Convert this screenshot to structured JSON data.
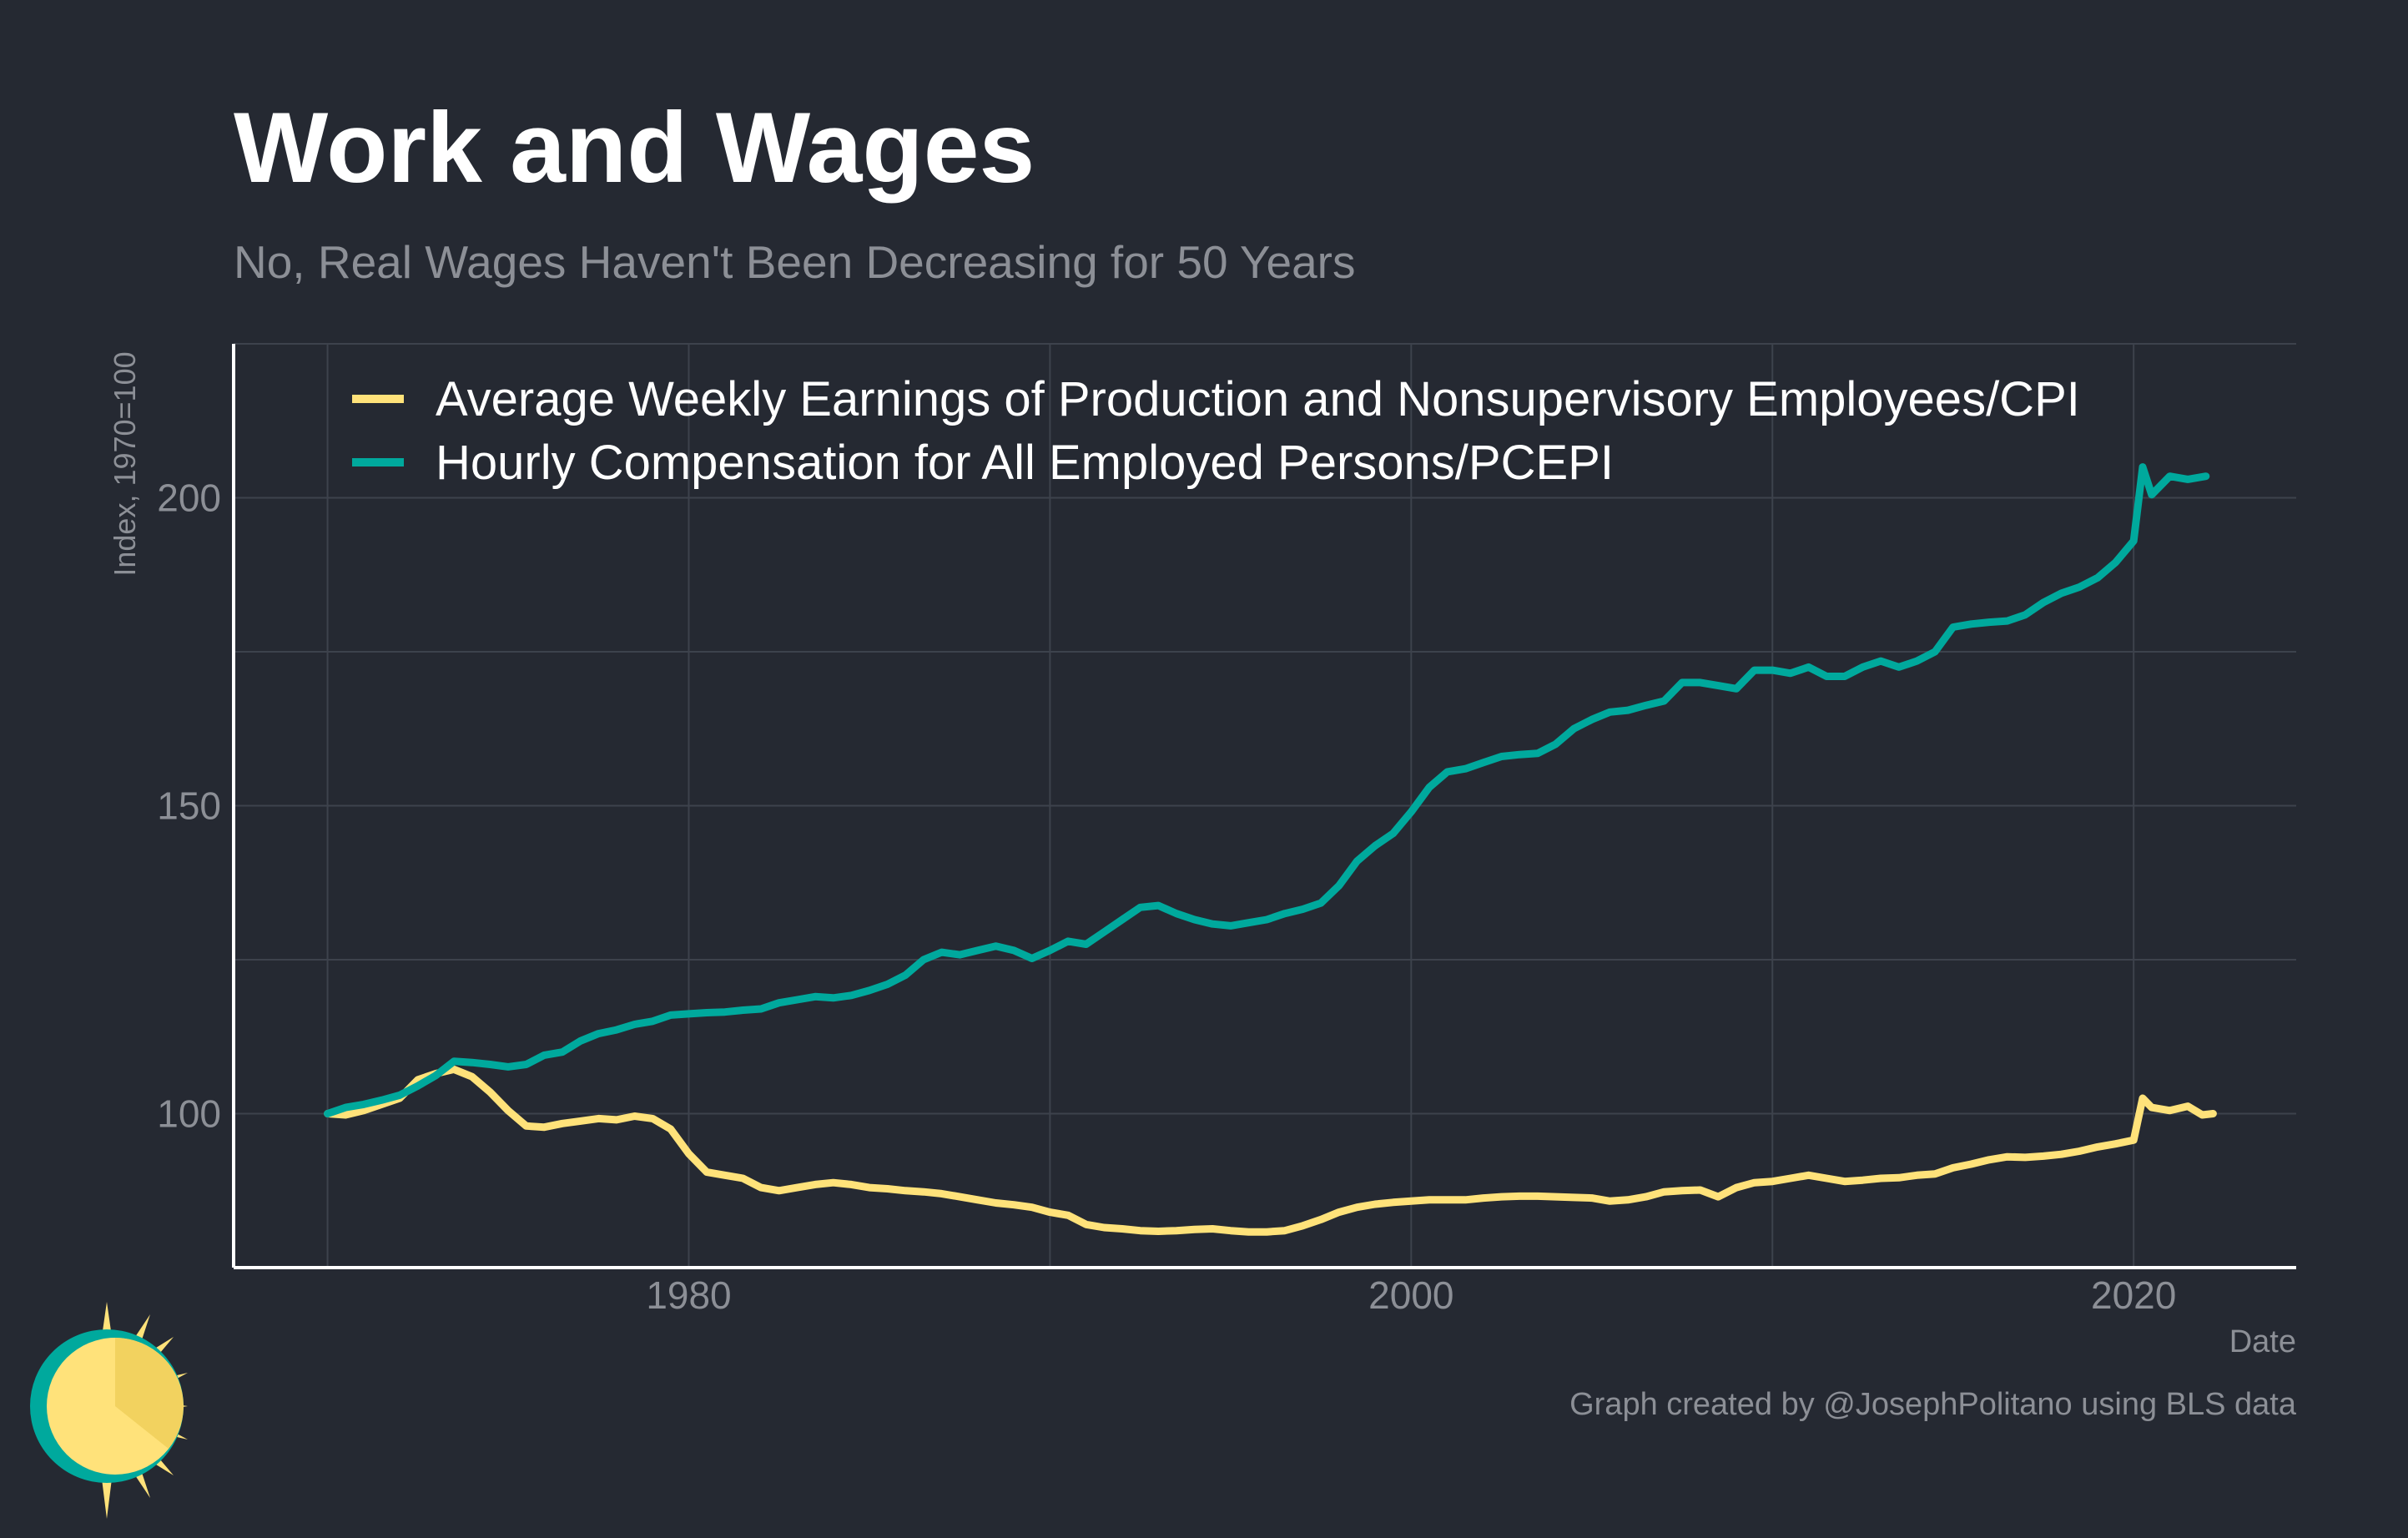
{
  "chart_data": {
    "type": "line",
    "title": "Work and Wages",
    "subtitle": "No, Real Wages Haven't Been Decreasing for 50 Years",
    "xlabel": "Date",
    "ylabel": "Index, 1970=100",
    "x_ticks": [
      1980,
      2000,
      2020
    ],
    "y_ticks": [
      100,
      150,
      200
    ],
    "xlim": [
      1967.4,
      2024.5
    ],
    "ylim": [
      75,
      225
    ],
    "grid": true,
    "legend_position": "top-left",
    "caption": "Graph created by @JosephPolitano using BLS data",
    "series": [
      {
        "name": "Average Weekly Earnings of Production and Nonsupervisory Employees/CPI",
        "color": "#ffe27a",
        "points": [
          [
            1970.0,
            100.0
          ],
          [
            1970.5,
            99.8
          ],
          [
            1971.0,
            100.5
          ],
          [
            1971.5,
            101.5
          ],
          [
            1972.0,
            102.5
          ],
          [
            1972.5,
            105.5
          ],
          [
            1973.0,
            106.5
          ],
          [
            1973.5,
            107.2
          ],
          [
            1974.0,
            106.0
          ],
          [
            1974.5,
            103.5
          ],
          [
            1975.0,
            100.5
          ],
          [
            1975.5,
            98.0
          ],
          [
            1976.0,
            97.8
          ],
          [
            1976.5,
            98.4
          ],
          [
            1977.0,
            98.8
          ],
          [
            1977.5,
            99.2
          ],
          [
            1978.0,
            99.0
          ],
          [
            1978.5,
            99.6
          ],
          [
            1979.0,
            99.2
          ],
          [
            1979.5,
            97.5
          ],
          [
            1980.0,
            93.5
          ],
          [
            1980.5,
            90.5
          ],
          [
            1981.0,
            90.0
          ],
          [
            1981.5,
            89.5
          ],
          [
            1982.0,
            88.0
          ],
          [
            1982.5,
            87.5
          ],
          [
            1983.0,
            88.0
          ],
          [
            1983.5,
            88.5
          ],
          [
            1984.0,
            88.8
          ],
          [
            1984.5,
            88.5
          ],
          [
            1985.0,
            88.0
          ],
          [
            1985.5,
            87.8
          ],
          [
            1986.0,
            87.5
          ],
          [
            1986.5,
            87.3
          ],
          [
            1987.0,
            87.0
          ],
          [
            1987.5,
            86.5
          ],
          [
            1988.0,
            86.0
          ],
          [
            1988.5,
            85.5
          ],
          [
            1989.0,
            85.2
          ],
          [
            1989.5,
            84.8
          ],
          [
            1990.0,
            84.0
          ],
          [
            1990.5,
            83.5
          ],
          [
            1991.0,
            82.0
          ],
          [
            1991.5,
            81.5
          ],
          [
            1992.0,
            81.3
          ],
          [
            1992.5,
            81.0
          ],
          [
            1993.0,
            80.9
          ],
          [
            1993.5,
            81.0
          ],
          [
            1994.0,
            81.2
          ],
          [
            1994.5,
            81.3
          ],
          [
            1995.0,
            81.0
          ],
          [
            1995.5,
            80.8
          ],
          [
            1996.0,
            80.8
          ],
          [
            1996.5,
            81.0
          ],
          [
            1997.0,
            81.8
          ],
          [
            1997.5,
            82.8
          ],
          [
            1998.0,
            84.0
          ],
          [
            1998.5,
            84.8
          ],
          [
            1999.0,
            85.3
          ],
          [
            1999.5,
            85.6
          ],
          [
            2000.0,
            85.8
          ],
          [
            2000.5,
            86.0
          ],
          [
            2001.0,
            86.0
          ],
          [
            2001.5,
            86.0
          ],
          [
            2002.0,
            86.3
          ],
          [
            2002.5,
            86.5
          ],
          [
            2003.0,
            86.6
          ],
          [
            2003.5,
            86.6
          ],
          [
            2004.0,
            86.5
          ],
          [
            2004.5,
            86.4
          ],
          [
            2005.0,
            86.3
          ],
          [
            2005.5,
            85.8
          ],
          [
            2006.0,
            86.0
          ],
          [
            2006.5,
            86.5
          ],
          [
            2007.0,
            87.3
          ],
          [
            2007.5,
            87.5
          ],
          [
            2008.0,
            87.6
          ],
          [
            2008.5,
            86.5
          ],
          [
            2009.0,
            88.0
          ],
          [
            2009.5,
            88.8
          ],
          [
            2010.0,
            89.0
          ],
          [
            2010.5,
            89.5
          ],
          [
            2011.0,
            90.0
          ],
          [
            2011.5,
            89.5
          ],
          [
            2012.0,
            89.0
          ],
          [
            2012.5,
            89.2
          ],
          [
            2013.0,
            89.5
          ],
          [
            2013.5,
            89.6
          ],
          [
            2014.0,
            90.0
          ],
          [
            2014.5,
            90.2
          ],
          [
            2015.0,
            91.2
          ],
          [
            2015.5,
            91.8
          ],
          [
            2016.0,
            92.5
          ],
          [
            2016.5,
            93.0
          ],
          [
            2017.0,
            92.9
          ],
          [
            2017.5,
            93.1
          ],
          [
            2018.0,
            93.4
          ],
          [
            2018.5,
            93.9
          ],
          [
            2019.0,
            94.6
          ],
          [
            2019.5,
            95.1
          ],
          [
            2020.0,
            95.7
          ],
          [
            2020.25,
            102.5
          ],
          [
            2020.5,
            101.0
          ],
          [
            2021.0,
            100.5
          ],
          [
            2021.5,
            101.2
          ],
          [
            2021.9,
            99.8
          ],
          [
            2022.2,
            100.0
          ]
        ]
      },
      {
        "name": "Hourly Compensation for All Employed Persons/PCEPI",
        "color": "#00a99d",
        "points": [
          [
            1970.0,
            100.0
          ],
          [
            1970.5,
            101.0
          ],
          [
            1971.0,
            101.5
          ],
          [
            1971.5,
            102.2
          ],
          [
            1972.0,
            103.0
          ],
          [
            1972.5,
            104.5
          ],
          [
            1973.0,
            106.2
          ],
          [
            1973.5,
            108.5
          ],
          [
            1974.0,
            108.3
          ],
          [
            1974.5,
            108.0
          ],
          [
            1975.0,
            107.6
          ],
          [
            1975.5,
            108.0
          ],
          [
            1976.0,
            109.5
          ],
          [
            1976.5,
            110.0
          ],
          [
            1977.0,
            111.8
          ],
          [
            1977.5,
            113.0
          ],
          [
            1978.0,
            113.6
          ],
          [
            1978.5,
            114.5
          ],
          [
            1979.0,
            115.0
          ],
          [
            1979.5,
            116.0
          ],
          [
            1980.0,
            116.2
          ],
          [
            1980.5,
            116.4
          ],
          [
            1981.0,
            116.5
          ],
          [
            1981.5,
            116.8
          ],
          [
            1982.0,
            117.0
          ],
          [
            1982.5,
            118.0
          ],
          [
            1983.0,
            118.5
          ],
          [
            1983.5,
            119.0
          ],
          [
            1984.0,
            118.8
          ],
          [
            1984.5,
            119.2
          ],
          [
            1985.0,
            120.0
          ],
          [
            1985.5,
            121.0
          ],
          [
            1986.0,
            122.5
          ],
          [
            1986.5,
            125.0
          ],
          [
            1987.0,
            126.2
          ],
          [
            1987.5,
            125.8
          ],
          [
            1988.0,
            126.5
          ],
          [
            1988.5,
            127.2
          ],
          [
            1989.0,
            126.5
          ],
          [
            1989.5,
            125.2
          ],
          [
            1990.0,
            126.5
          ],
          [
            1990.5,
            128.0
          ],
          [
            1991.0,
            127.5
          ],
          [
            1991.5,
            129.5
          ],
          [
            1992.0,
            131.5
          ],
          [
            1992.5,
            133.5
          ],
          [
            1993.0,
            133.8
          ],
          [
            1993.5,
            132.5
          ],
          [
            1994.0,
            131.5
          ],
          [
            1994.5,
            130.8
          ],
          [
            1995.0,
            130.5
          ],
          [
            1995.5,
            131.0
          ],
          [
            1996.0,
            131.5
          ],
          [
            1996.5,
            132.5
          ],
          [
            1997.0,
            133.2
          ],
          [
            1997.5,
            134.2
          ],
          [
            1998.0,
            137.0
          ],
          [
            1998.5,
            141.0
          ],
          [
            1999.0,
            143.5
          ],
          [
            1999.5,
            145.5
          ],
          [
            2000.0,
            149.0
          ],
          [
            2000.5,
            153.0
          ],
          [
            2001.0,
            155.5
          ],
          [
            2001.5,
            156.0
          ],
          [
            2002.0,
            157.0
          ],
          [
            2002.5,
            158.0
          ],
          [
            2003.0,
            158.3
          ],
          [
            2003.5,
            158.5
          ],
          [
            2004.0,
            160.0
          ],
          [
            2004.5,
            162.5
          ],
          [
            2005.0,
            164.0
          ],
          [
            2005.5,
            165.2
          ],
          [
            2006.0,
            165.5
          ],
          [
            2006.5,
            166.3
          ],
          [
            2007.0,
            167.0
          ],
          [
            2007.5,
            170.0
          ],
          [
            2008.0,
            170.0
          ],
          [
            2008.5,
            169.5
          ],
          [
            2009.0,
            169.0
          ],
          [
            2009.5,
            172.0
          ],
          [
            2010.0,
            172.0
          ],
          [
            2010.5,
            171.5
          ],
          [
            2011.0,
            172.5
          ],
          [
            2011.5,
            171.0
          ],
          [
            2012.0,
            171.0
          ],
          [
            2012.5,
            172.5
          ],
          [
            2013.0,
            173.5
          ],
          [
            2013.5,
            172.5
          ],
          [
            2014.0,
            173.5
          ],
          [
            2014.5,
            175.0
          ],
          [
            2015.0,
            179.0
          ],
          [
            2015.5,
            179.5
          ],
          [
            2016.0,
            179.8
          ],
          [
            2016.5,
            180.0
          ],
          [
            2017.0,
            181.0
          ],
          [
            2017.5,
            183.0
          ],
          [
            2018.0,
            184.5
          ],
          [
            2018.5,
            185.5
          ],
          [
            2019.0,
            187.0
          ],
          [
            2019.5,
            189.5
          ],
          [
            2020.0,
            193.0
          ],
          [
            2020.25,
            205.0
          ],
          [
            2020.5,
            200.5
          ],
          [
            2021.0,
            203.5
          ],
          [
            2021.5,
            203.0
          ],
          [
            2022.0,
            203.5
          ]
        ]
      }
    ]
  },
  "logo": {
    "name": "sun-logo",
    "colors": [
      "#00a99d",
      "#ffe27a",
      "#f7d96b"
    ]
  }
}
